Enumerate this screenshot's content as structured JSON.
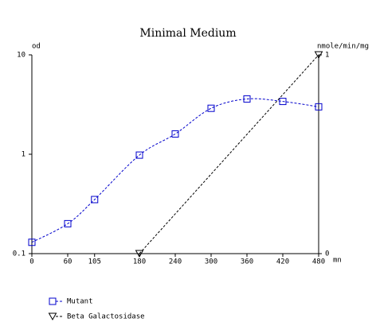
{
  "chart_data": {
    "type": "line",
    "title": "Minimal Medium",
    "y_label": "od",
    "y2_label": "nmole/min/mg",
    "x_label": "mn",
    "xlim": [
      0,
      480
    ],
    "xticks": [
      0,
      60,
      105,
      180,
      240,
      300,
      360,
      420,
      480
    ],
    "ylim": [
      0.1,
      10
    ],
    "yticks": [
      0.1,
      1,
      10
    ],
    "ylog": true,
    "y2lim": [
      0,
      1
    ],
    "y2ticks": [
      0,
      1
    ],
    "series": [
      {
        "name": "Mutant",
        "color": "#0000cc",
        "marker": "square",
        "smooth": true,
        "x": [
          0,
          60,
          105,
          180,
          240,
          300,
          360,
          420,
          480
        ],
        "values": [
          0.13,
          0.2,
          0.35,
          0.98,
          1.6,
          2.9,
          3.6,
          3.4,
          3.0
        ]
      },
      {
        "name": "Beta Galactosidase",
        "color": "#000000",
        "marker": "triangle",
        "axis": "y2",
        "smooth": false,
        "x": [
          180,
          480
        ],
        "values": [
          0,
          1
        ]
      }
    ]
  }
}
